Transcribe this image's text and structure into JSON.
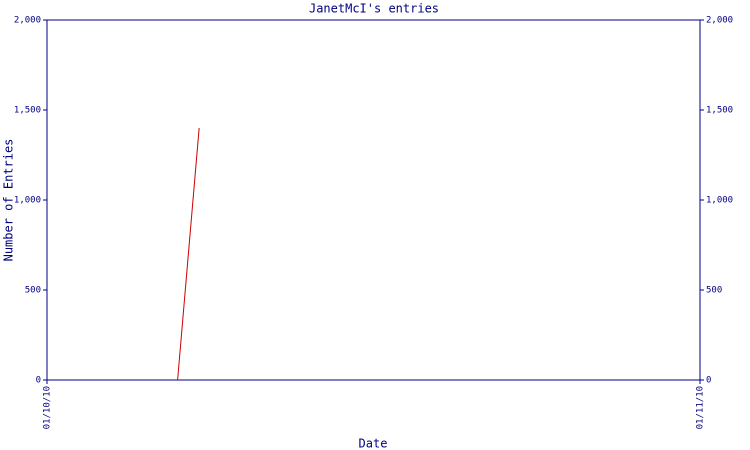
{
  "chart_data": {
    "type": "line",
    "title": "JanetMcI's entries",
    "x_label": "Date",
    "y_label": "Number of Entries",
    "x": [
      0.2,
      0.233
    ],
    "series": [
      {
        "name": "entries",
        "color": "#cc0000",
        "values": [
          0,
          1400
        ]
      }
    ],
    "xlim": [
      0,
      1
    ],
    "xticks": [
      {
        "value": 0,
        "label": "01/10/10"
      },
      {
        "value": 1,
        "label": "01/11/10"
      }
    ],
    "ylim": [
      0,
      2000
    ],
    "yticks": [
      0,
      500,
      {
        "value": 1000,
        "label": "1,000"
      },
      {
        "value": 1500,
        "label": "1,500"
      },
      {
        "value": 2000,
        "label": "2,000"
      }
    ],
    "right_axis": true,
    "axis_color": "#000080"
  }
}
